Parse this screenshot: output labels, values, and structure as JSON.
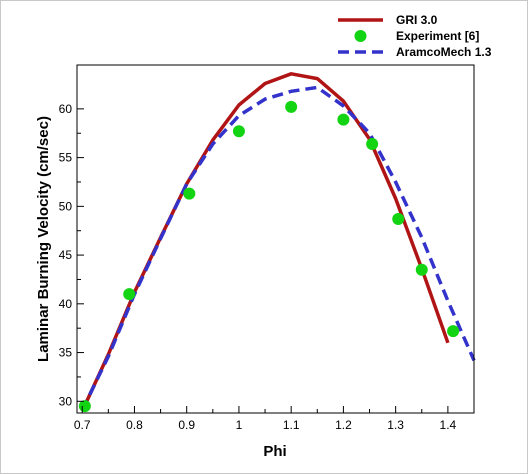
{
  "chart_data": {
    "type": "line",
    "title": "",
    "xlabel": "Phi",
    "ylabel": "Laminar Burning Velocity (cm/sec)",
    "xlim": [
      0.69,
      1.45
    ],
    "ylim": [
      28.8,
      64.5
    ],
    "x_ticks": [
      0.7,
      0.8,
      0.9,
      1,
      1.1,
      1.2,
      1.3,
      1.4
    ],
    "x_tick_labels": [
      "0.7",
      "0.8",
      "0.9",
      "1",
      "1.1",
      "1.2",
      "1.3",
      "1.4"
    ],
    "y_ticks": [
      30,
      35,
      40,
      45,
      50,
      55,
      60
    ],
    "y_tick_labels": [
      "30",
      "35",
      "40",
      "45",
      "50",
      "55",
      "60"
    ],
    "grid": false,
    "legend_position": "top-right",
    "series": [
      {
        "name": "GRI 3.0",
        "style": "solid-line",
        "color": "#b01414",
        "x": [
          0.7,
          0.75,
          0.8,
          0.85,
          0.9,
          0.95,
          1.0,
          1.05,
          1.1,
          1.15,
          1.2,
          1.25,
          1.3,
          1.35,
          1.4
        ],
        "y": [
          29.0,
          34.8,
          41.2,
          46.8,
          52.3,
          56.8,
          60.4,
          62.6,
          63.6,
          63.1,
          60.8,
          56.9,
          50.8,
          43.6,
          36.0
        ]
      },
      {
        "name": "Experiment [6]",
        "style": "markers",
        "color": "#12d412",
        "x": [
          0.705,
          0.79,
          0.905,
          1.0,
          1.1,
          1.2,
          1.255,
          1.305,
          1.35,
          1.41
        ],
        "y": [
          29.5,
          41.0,
          51.3,
          57.7,
          60.2,
          58.9,
          56.4,
          48.7,
          43.5,
          37.2
        ]
      },
      {
        "name": "AramcoMech 1.3",
        "style": "dashed-line",
        "color": "#3333cc",
        "x": [
          0.7,
          0.75,
          0.8,
          0.85,
          0.9,
          0.95,
          1.0,
          1.05,
          1.1,
          1.15,
          1.2,
          1.25,
          1.3,
          1.35,
          1.4,
          1.45
        ],
        "y": [
          29.1,
          34.6,
          41.0,
          46.7,
          52.3,
          56.4,
          59.3,
          61.0,
          61.8,
          62.2,
          60.3,
          57.5,
          52.5,
          46.8,
          40.3,
          34.2
        ]
      }
    ]
  }
}
